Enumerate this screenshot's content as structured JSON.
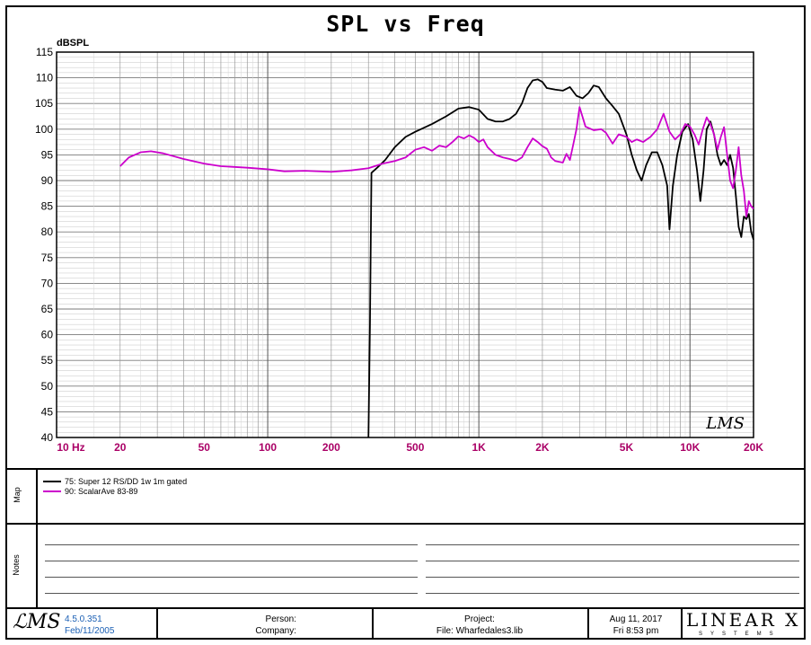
{
  "chart_data": {
    "type": "line",
    "title": "SPL vs Freq",
    "ylabel": "dBSPL",
    "xlabel": "",
    "x_scale": "log",
    "xlim": [
      10,
      20000
    ],
    "ylim": [
      40,
      115
    ],
    "grid": true,
    "y_ticks": [
      115,
      110,
      105,
      100,
      95,
      90,
      85,
      80,
      75,
      70,
      65,
      60,
      55,
      50,
      45,
      40
    ],
    "x_ticks": [
      {
        "value": 10,
        "label": "10 Hz"
      },
      {
        "value": 20,
        "label": "20"
      },
      {
        "value": 50,
        "label": "50"
      },
      {
        "value": 100,
        "label": "100"
      },
      {
        "value": 200,
        "label": "200"
      },
      {
        "value": 500,
        "label": "500"
      },
      {
        "value": 1000,
        "label": "1K"
      },
      {
        "value": 2000,
        "label": "2K"
      },
      {
        "value": 5000,
        "label": "5K"
      },
      {
        "value": 10000,
        "label": "10K"
      },
      {
        "value": 20000,
        "label": "20K"
      }
    ],
    "series": [
      {
        "name": "75: Super 12 RS/DD  1w 1m gated",
        "color": "#000000",
        "points": [
          [
            300,
            40
          ],
          [
            305,
            62
          ],
          [
            310,
            91.5
          ],
          [
            330,
            92.5
          ],
          [
            360,
            94
          ],
          [
            400,
            96.5
          ],
          [
            450,
            98.5
          ],
          [
            500,
            99.5
          ],
          [
            600,
            101
          ],
          [
            700,
            102.5
          ],
          [
            800,
            104
          ],
          [
            900,
            104.3
          ],
          [
            1000,
            103.8
          ],
          [
            1100,
            102
          ],
          [
            1200,
            101.5
          ],
          [
            1300,
            101.5
          ],
          [
            1400,
            102
          ],
          [
            1500,
            103
          ],
          [
            1600,
            105
          ],
          [
            1700,
            108
          ],
          [
            1800,
            109.5
          ],
          [
            1900,
            109.7
          ],
          [
            2000,
            109.2
          ],
          [
            2100,
            108
          ],
          [
            2300,
            107.7
          ],
          [
            2500,
            107.5
          ],
          [
            2700,
            108.2
          ],
          [
            2900,
            106.5
          ],
          [
            3100,
            106
          ],
          [
            3300,
            107
          ],
          [
            3500,
            108.5
          ],
          [
            3700,
            108.2
          ],
          [
            4000,
            106
          ],
          [
            4300,
            104.5
          ],
          [
            4600,
            103
          ],
          [
            5000,
            99
          ],
          [
            5300,
            95
          ],
          [
            5600,
            92
          ],
          [
            5900,
            90
          ],
          [
            6200,
            93
          ],
          [
            6600,
            95.5
          ],
          [
            7000,
            95.5
          ],
          [
            7400,
            93
          ],
          [
            7800,
            89
          ],
          [
            8000,
            80.5
          ],
          [
            8300,
            89
          ],
          [
            8700,
            95
          ],
          [
            9200,
            99.5
          ],
          [
            9800,
            101
          ],
          [
            10300,
            98
          ],
          [
            10800,
            92
          ],
          [
            11200,
            86
          ],
          [
            11600,
            92
          ],
          [
            12000,
            100
          ],
          [
            12500,
            101.5
          ],
          [
            13000,
            99
          ],
          [
            13500,
            95
          ],
          [
            14000,
            93
          ],
          [
            14500,
            94
          ],
          [
            15000,
            93
          ],
          [
            15500,
            95
          ],
          [
            16000,
            92.5
          ],
          [
            16500,
            87
          ],
          [
            17000,
            81
          ],
          [
            17500,
            79
          ],
          [
            18000,
            83
          ],
          [
            18500,
            82.5
          ],
          [
            19000,
            83.5
          ],
          [
            19500,
            80
          ],
          [
            20000,
            78.5
          ]
        ]
      },
      {
        "name": "90: ScalarAve 83-89",
        "color": "#cc00cc",
        "points": [
          [
            20,
            92.8
          ],
          [
            22,
            94.5
          ],
          [
            25,
            95.5
          ],
          [
            28,
            95.7
          ],
          [
            32,
            95.3
          ],
          [
            40,
            94.2
          ],
          [
            50,
            93.3
          ],
          [
            60,
            92.8
          ],
          [
            80,
            92.5
          ],
          [
            100,
            92.2
          ],
          [
            120,
            91.8
          ],
          [
            150,
            91.9
          ],
          [
            200,
            91.7
          ],
          [
            250,
            92
          ],
          [
            300,
            92.4
          ],
          [
            350,
            93.3
          ],
          [
            400,
            93.8
          ],
          [
            450,
            94.5
          ],
          [
            500,
            96
          ],
          [
            550,
            96.5
          ],
          [
            600,
            95.8
          ],
          [
            650,
            96.8
          ],
          [
            700,
            96.5
          ],
          [
            750,
            97.5
          ],
          [
            800,
            98.6
          ],
          [
            850,
            98.2
          ],
          [
            900,
            98.8
          ],
          [
            950,
            98.3
          ],
          [
            1000,
            97.5
          ],
          [
            1050,
            98
          ],
          [
            1100,
            96.5
          ],
          [
            1200,
            95
          ],
          [
            1300,
            94.5
          ],
          [
            1400,
            94.2
          ],
          [
            1500,
            93.8
          ],
          [
            1600,
            94.5
          ],
          [
            1700,
            96.5
          ],
          [
            1800,
            98.2
          ],
          [
            1900,
            97.5
          ],
          [
            2000,
            96.7
          ],
          [
            2100,
            96.2
          ],
          [
            2200,
            94.5
          ],
          [
            2300,
            93.8
          ],
          [
            2500,
            93.5
          ],
          [
            2600,
            95.2
          ],
          [
            2700,
            94
          ],
          [
            2800,
            97
          ],
          [
            2900,
            100
          ],
          [
            3000,
            104.3
          ],
          [
            3200,
            100.5
          ],
          [
            3500,
            99.8
          ],
          [
            3800,
            100
          ],
          [
            4000,
            99.3
          ],
          [
            4300,
            97.2
          ],
          [
            4600,
            99
          ],
          [
            5000,
            98.5
          ],
          [
            5300,
            97.5
          ],
          [
            5600,
            98
          ],
          [
            6000,
            97.5
          ],
          [
            6500,
            98.5
          ],
          [
            7000,
            100
          ],
          [
            7500,
            103
          ],
          [
            8000,
            99.5
          ],
          [
            8500,
            98
          ],
          [
            9000,
            99
          ],
          [
            9500,
            101
          ],
          [
            10000,
            100.5
          ],
          [
            10500,
            99
          ],
          [
            11000,
            97
          ],
          [
            11500,
            100
          ],
          [
            12000,
            102.3
          ],
          [
            12500,
            101
          ],
          [
            13000,
            99
          ],
          [
            13500,
            96
          ],
          [
            14000,
            98.5
          ],
          [
            14500,
            100.4
          ],
          [
            15000,
            95
          ],
          [
            15500,
            90
          ],
          [
            16000,
            88.5
          ],
          [
            16500,
            92
          ],
          [
            17000,
            96.5
          ],
          [
            17500,
            91
          ],
          [
            18000,
            88
          ],
          [
            18500,
            83
          ],
          [
            19000,
            86
          ],
          [
            19500,
            85
          ],
          [
            20000,
            84.5
          ]
        ]
      }
    ]
  },
  "watermark": "LMS",
  "map_panel": {
    "label": "Map"
  },
  "notes_panel": {
    "label": "Notes"
  },
  "footer": {
    "version": "4.5.0.351",
    "build_date": "Feb/11/2005",
    "person_label": "Person:",
    "company_label": "Company:",
    "project_label": "Project:",
    "file_label": "File: Wharfedales3.lib",
    "date": "Aug 11, 2017",
    "time": "Fri  8:53 pm",
    "brand": "LINEAR X",
    "brand_sub": "SYSTEMS"
  },
  "colors": {
    "tick_label": "#aa0066",
    "grid": "#9a9a9a",
    "footer_blue": "#1a5fb4"
  }
}
